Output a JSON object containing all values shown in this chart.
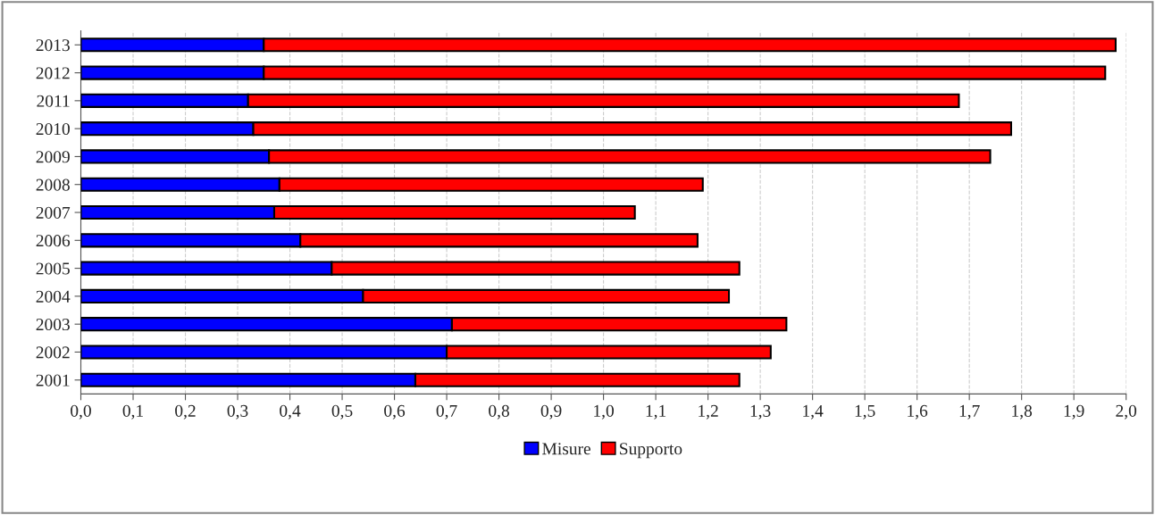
{
  "chart_data": {
    "type": "bar",
    "orientation": "horizontal",
    "stacked": true,
    "categories": [
      "2013",
      "2012",
      "2011",
      "2010",
      "2009",
      "2008",
      "2007",
      "2006",
      "2005",
      "2004",
      "2003",
      "2002",
      "2001"
    ],
    "series": [
      {
        "name": "Misure",
        "color": "#0000ff",
        "values": [
          0.35,
          0.35,
          0.32,
          0.33,
          0.36,
          0.38,
          0.37,
          0.42,
          0.48,
          0.54,
          0.71,
          0.7,
          0.64
        ]
      },
      {
        "name": "Supporto",
        "color": "#ff0000",
        "values": [
          1.63,
          1.61,
          1.36,
          1.45,
          1.38,
          0.81,
          0.69,
          0.76,
          0.78,
          0.7,
          0.64,
          0.62,
          0.62
        ]
      }
    ],
    "xlim": [
      0,
      2
    ],
    "xticks": [
      {
        "value": 0,
        "label": "0,0"
      },
      {
        "value": 0.1,
        "label": "0,1"
      },
      {
        "value": 0.2,
        "label": "0,2"
      },
      {
        "value": 0.3,
        "label": "0,3"
      },
      {
        "value": 0.4,
        "label": "0,4"
      },
      {
        "value": 0.5,
        "label": "0,5"
      },
      {
        "value": 0.6,
        "label": "0,6"
      },
      {
        "value": 0.7,
        "label": "0,7"
      },
      {
        "value": 0.8,
        "label": "0,8"
      },
      {
        "value": 0.9,
        "label": "0,9"
      },
      {
        "value": 1.0,
        "label": "1,0"
      },
      {
        "value": 1.1,
        "label": "1,1"
      },
      {
        "value": 1.2,
        "label": "1,2"
      },
      {
        "value": 1.3,
        "label": "1,3"
      },
      {
        "value": 1.4,
        "label": "1,4"
      },
      {
        "value": 1.5,
        "label": "1,5"
      },
      {
        "value": 1.6,
        "label": "1,6"
      },
      {
        "value": 1.7,
        "label": "1,7"
      },
      {
        "value": 1.8,
        "label": "1,8"
      },
      {
        "value": 1.9,
        "label": "1,9"
      },
      {
        "value": 2.0,
        "label": "2,0"
      }
    ],
    "grid": "x",
    "legend": "bottom"
  }
}
